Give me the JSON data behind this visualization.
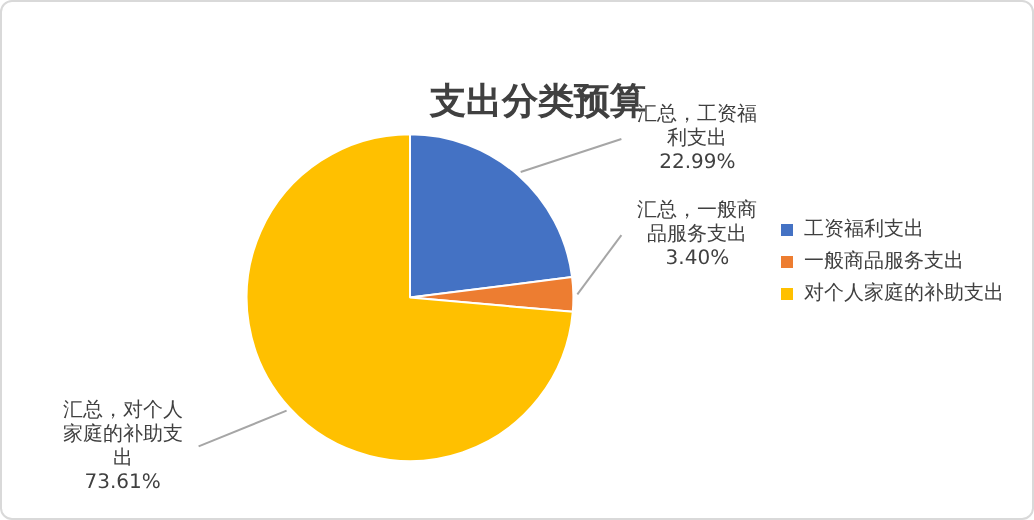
{
  "chart_data": {
    "type": "pie",
    "title": "支出分类预算",
    "categories": [
      "工资福利支出",
      "一般商品服务支出",
      "对个人家庭的补助支出"
    ],
    "values": [
      22.99,
      3.4,
      73.61
    ],
    "colors": [
      "#4472c4",
      "#ed7d31",
      "#ffc000"
    ],
    "value_labels": [
      "汇总，工资福利支出 22.99%",
      "汇总，一般商品服务支出 3.40%",
      "汇总，对个人家庭的补助支出 73.61%"
    ],
    "legend": "right"
  }
}
